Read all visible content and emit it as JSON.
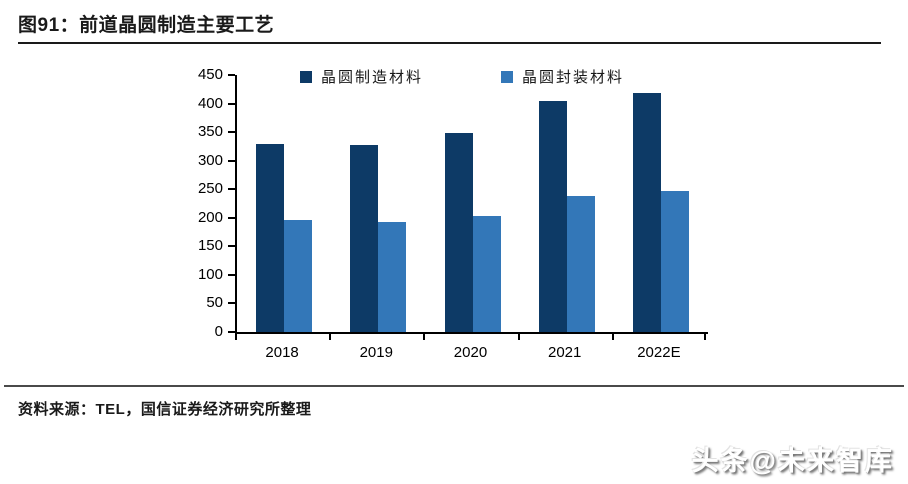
{
  "figure": {
    "title": "图91：前道晶圆制造主要工艺",
    "source": "资料来源：TEL，国信证券经济研究所整理",
    "watermark": "头条@未来智库"
  },
  "colors": {
    "series1": "#0d3a66",
    "series2": "#3377b8",
    "axis": "#000000",
    "text": "#1a1a1a",
    "top_rule": "#1a1a1a",
    "bottom_rule": "#4a4a4a"
  },
  "chart_data": {
    "type": "bar",
    "title": "",
    "xlabel": "",
    "ylabel": "",
    "categories": [
      "2018",
      "2019",
      "2020",
      "2021",
      "2022E"
    ],
    "series": [
      {
        "name": "晶圆制造材料",
        "color": "#0d3a66",
        "values": [
          330,
          328,
          349,
          404,
          419
        ]
      },
      {
        "name": "晶圆封装材料",
        "color": "#3377b8",
        "values": [
          197,
          192,
          204,
          239,
          247
        ]
      }
    ],
    "ylim": [
      0,
      450
    ],
    "ytick_step": 50,
    "grid": false,
    "legend_position": "top"
  }
}
